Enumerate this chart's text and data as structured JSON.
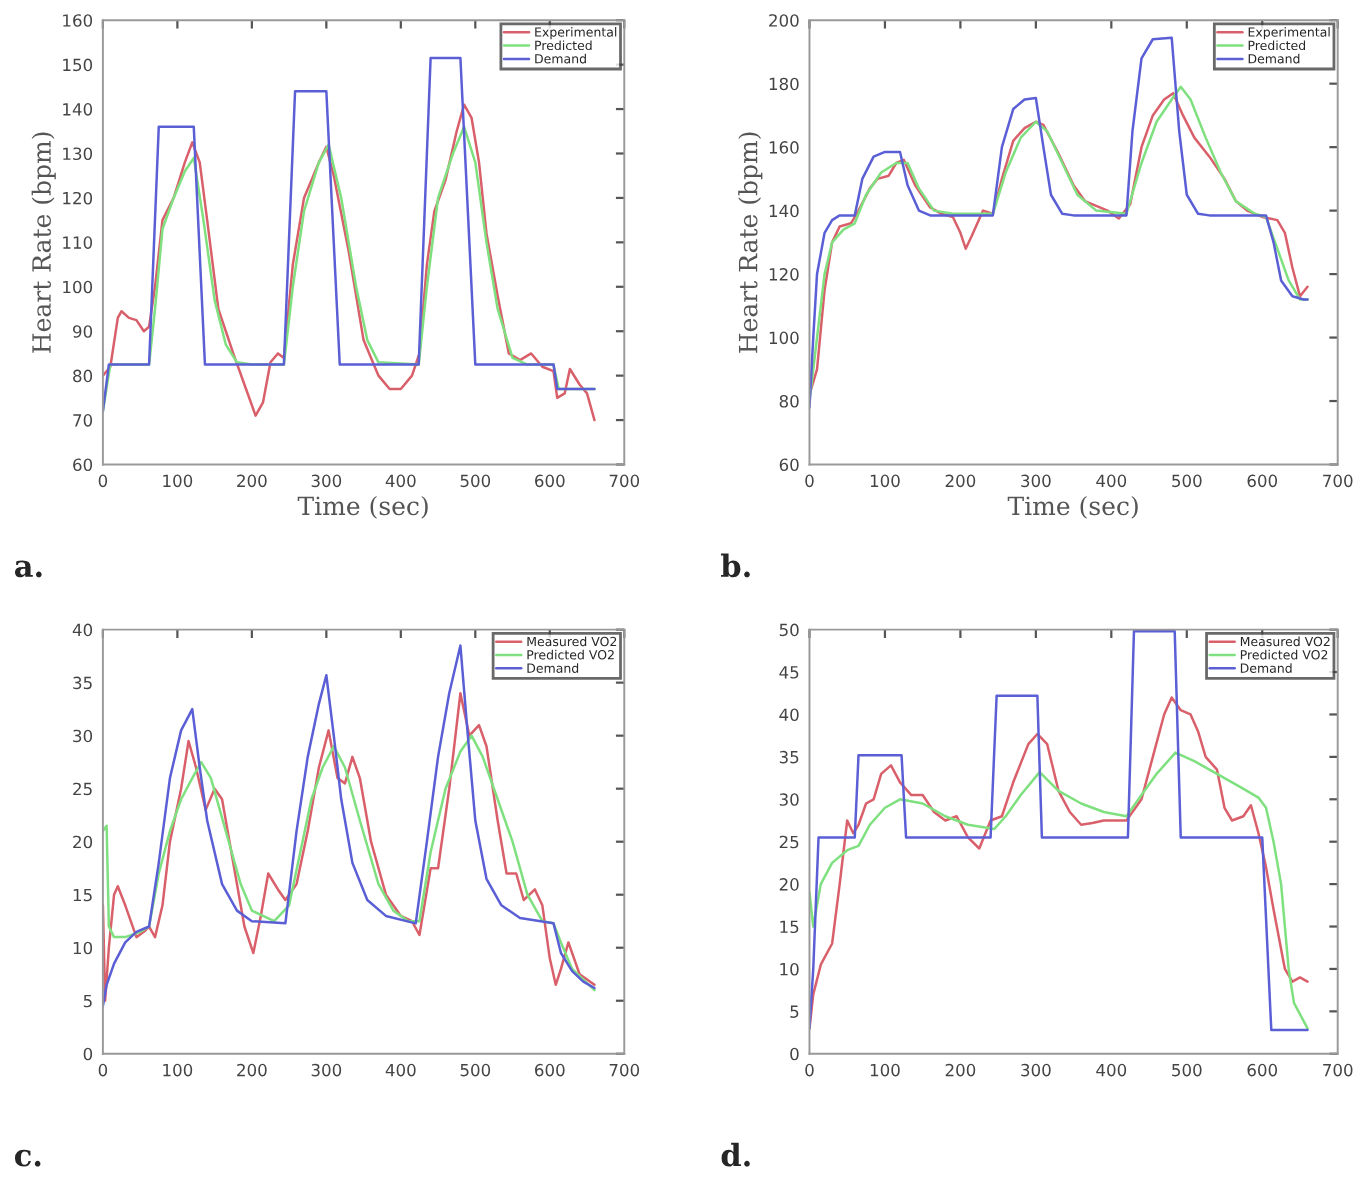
{
  "chart_data": [
    {
      "type": "line",
      "xlabel": "Time (sec)",
      "ylabel": "Heart Rate (bpm)",
      "annotations": [
        "a."
      ],
      "xlim": [
        0,
        700
      ],
      "ylim": [
        60,
        160
      ],
      "xticks": [
        0,
        100,
        200,
        300,
        400,
        500,
        600,
        700
      ],
      "yticks": [
        60,
        70,
        80,
        90,
        100,
        110,
        120,
        130,
        140,
        150,
        160
      ],
      "grid": false,
      "legend": "top right",
      "series": [
        {
          "name": "Experimental",
          "color": "#d9606a",
          "x": [
            0,
            10,
            20,
            25,
            35,
            45,
            55,
            62,
            70,
            80,
            95,
            110,
            120,
            130,
            140,
            155,
            175,
            190,
            205,
            215,
            225,
            235,
            243,
            255,
            270,
            290,
            300,
            310,
            330,
            350,
            370,
            385,
            400,
            415,
            425,
            435,
            445,
            460,
            475,
            485,
            495,
            505,
            515,
            530,
            545,
            560,
            575,
            590,
            605,
            610,
            620,
            627,
            640,
            650,
            660
          ],
          "values": [
            80,
            82,
            93,
            94.5,
            93,
            92.5,
            90,
            91,
            100,
            115,
            120,
            128,
            132.5,
            128,
            115,
            95,
            85,
            78,
            71,
            74,
            83,
            85,
            84,
            105,
            120,
            128,
            131.5,
            125,
            108,
            88,
            80,
            77,
            77,
            80,
            85,
            105,
            117,
            124,
            135,
            141,
            138,
            128,
            112,
            98,
            85,
            83.5,
            85,
            82,
            81,
            75,
            76,
            81.5,
            78,
            76,
            70
          ]
        },
        {
          "name": "Predicted",
          "color": "#7fe07f",
          "x": [
            0,
            10,
            62,
            70,
            80,
            95,
            110,
            122,
            135,
            150,
            165,
            180,
            200,
            243,
            255,
            270,
            290,
            303,
            320,
            340,
            355,
            370,
            424,
            435,
            450,
            470,
            485,
            500,
            515,
            530,
            550,
            570,
            605,
            612,
            660
          ],
          "values": [
            72,
            82.5,
            82.5,
            95,
            113,
            120,
            126,
            129,
            115,
            97,
            87,
            83,
            82.5,
            82.5,
            100,
            117,
            128,
            132,
            120,
            100,
            88,
            83,
            82.5,
            100,
            120,
            130,
            136,
            128,
            110,
            95,
            84,
            82.5,
            82.5,
            77,
            77
          ]
        },
        {
          "name": "Demand",
          "color": "#5b5fd6",
          "x": [
            0,
            8,
            62,
            75,
            122,
            137,
            243,
            258,
            300,
            318,
            424,
            440,
            480,
            500,
            605,
            610,
            660
          ],
          "values": [
            72,
            82.5,
            82.5,
            136,
            136,
            82.5,
            82.5,
            144,
            144,
            82.5,
            82.5,
            151.5,
            151.5,
            82.5,
            82.5,
            77,
            77
          ]
        }
      ]
    },
    {
      "type": "line",
      "xlabel": "Time (sec)",
      "ylabel": "Heart Rate (bpm)",
      "annotations": [
        "b."
      ],
      "xlim": [
        0,
        700
      ],
      "ylim": [
        60,
        200
      ],
      "xticks": [
        0,
        100,
        200,
        300,
        400,
        500,
        600,
        700
      ],
      "yticks": [
        60,
        80,
        100,
        120,
        140,
        160,
        180,
        200
      ],
      "grid": false,
      "legend": "top right",
      "series": [
        {
          "name": "Experimental",
          "color": "#d9606a",
          "x": [
            0,
            10,
            20,
            30,
            40,
            55,
            65,
            80,
            90,
            105,
            115,
            125,
            140,
            160,
            175,
            190,
            200,
            207,
            215,
            230,
            243,
            255,
            270,
            285,
            300,
            310,
            330,
            350,
            365,
            380,
            395,
            410,
            425,
            440,
            455,
            470,
            482,
            495,
            510,
            530,
            550,
            565,
            580,
            600,
            620,
            630,
            640,
            650,
            660
          ],
          "values": [
            82,
            90,
            115,
            130,
            135,
            136,
            140,
            147,
            150,
            151,
            155,
            156,
            148,
            141,
            139,
            138,
            133,
            128,
            132,
            140,
            139,
            150,
            162,
            166,
            168,
            167,
            158,
            148,
            143,
            141.5,
            140,
            137.5,
            142,
            160,
            170,
            175,
            177,
            170,
            163,
            157,
            150,
            143,
            140,
            138,
            137,
            133,
            122,
            113,
            116
          ]
        },
        {
          "name": "Predicted",
          "color": "#7fe07f",
          "x": [
            0,
            10,
            20,
            30,
            45,
            60,
            75,
            95,
            115,
            130,
            145,
            165,
            190,
            243,
            260,
            280,
            300,
            315,
            335,
            355,
            380,
            420,
            440,
            460,
            480,
            492,
            505,
            525,
            545,
            565,
            590,
            605,
            620,
            635,
            650,
            660
          ],
          "values": [
            80,
            100,
            120,
            130,
            134,
            136,
            145,
            152,
            155,
            155,
            147,
            140,
            139,
            139,
            152,
            163,
            168,
            165,
            155,
            145,
            140,
            139,
            155,
            168,
            175,
            179,
            175,
            163,
            152,
            143,
            139,
            138,
            128,
            118,
            112,
            112
          ]
        },
        {
          "name": "Demand",
          "color": "#5b5fd6",
          "x": [
            0,
            5,
            10,
            20,
            30,
            40,
            60,
            70,
            85,
            100,
            120,
            130,
            145,
            160,
            243,
            255,
            270,
            285,
            300,
            310,
            320,
            335,
            350,
            420,
            428,
            440,
            455,
            480,
            490,
            500,
            515,
            530,
            605,
            615,
            625,
            640,
            655,
            660
          ],
          "values": [
            78,
            100,
            120,
            133,
            137,
            138.5,
            138.5,
            150,
            157,
            158.5,
            158.5,
            148,
            140,
            138.5,
            138.5,
            160,
            172,
            175,
            175.5,
            160,
            145,
            139,
            138.5,
            138.5,
            165,
            188,
            194,
            194.5,
            165,
            145,
            139,
            138.5,
            138.5,
            130,
            118,
            113,
            112,
            112
          ]
        }
      ]
    },
    {
      "type": "line",
      "annotations": [
        "c."
      ],
      "xlim": [
        0,
        700
      ],
      "ylim": [
        0,
        40
      ],
      "xticks": [
        0,
        100,
        200,
        300,
        400,
        500,
        600,
        700
      ],
      "yticks": [
        0,
        5,
        10,
        15,
        20,
        25,
        30,
        35,
        40
      ],
      "grid": false,
      "legend": "top right",
      "series": [
        {
          "name": "Measured VO2",
          "color": "#d9606a",
          "x": [
            0,
            3,
            8,
            15,
            20,
            30,
            45,
            55,
            62,
            70,
            80,
            90,
            105,
            115,
            125,
            138,
            150,
            160,
            175,
            190,
            202,
            212,
            222,
            235,
            245,
            260,
            275,
            290,
            303,
            315,
            325,
            335,
            345,
            360,
            380,
            400,
            415,
            425,
            440,
            450,
            465,
            480,
            492,
            505,
            515,
            530,
            542,
            555,
            565,
            580,
            590,
            600,
            608,
            615,
            625,
            640,
            660
          ],
          "values": [
            14,
            5,
            10,
            15,
            15.8,
            14,
            11,
            11.5,
            12,
            11,
            14,
            20,
            25,
            29.5,
            27,
            23,
            25,
            24,
            18,
            12,
            9.5,
            13,
            17,
            15.5,
            14.5,
            16,
            21,
            27,
            30.5,
            26,
            25.5,
            28,
            26,
            20,
            15,
            13,
            12.5,
            11.2,
            17.5,
            17.5,
            25,
            34,
            30,
            31,
            29,
            22,
            17,
            17,
            14.5,
            15.5,
            14,
            9,
            6.5,
            8,
            10.5,
            7.5,
            6.5
          ]
        },
        {
          "name": "Predicted VO2",
          "color": "#7fe07f",
          "x": [
            0,
            5,
            8,
            15,
            30,
            50,
            62,
            75,
            90,
            105,
            120,
            132,
            145,
            165,
            185,
            200,
            230,
            250,
            265,
            280,
            295,
            310,
            325,
            345,
            370,
            390,
            410,
            425,
            440,
            460,
            480,
            495,
            510,
            530,
            550,
            570,
            590,
            605,
            615,
            630,
            645,
            660
          ],
          "values": [
            21,
            21.5,
            12,
            11,
            11,
            11.5,
            12,
            17,
            21,
            24,
            26,
            27.5,
            26,
            21,
            16,
            13.5,
            12.5,
            14,
            19,
            24,
            27,
            29,
            27,
            22,
            16,
            13.5,
            12.5,
            12.5,
            19,
            25,
            28.5,
            30,
            28,
            24,
            20,
            15,
            12.5,
            12.3,
            10.5,
            8,
            7,
            6
          ]
        },
        {
          "name": "Demand",
          "color": "#5b5fd6",
          "x": [
            0,
            5,
            15,
            30,
            45,
            62,
            75,
            90,
            105,
            120,
            130,
            140,
            160,
            180,
            200,
            245,
            260,
            275,
            290,
            300,
            310,
            320,
            335,
            355,
            380,
            420,
            435,
            450,
            465,
            480,
            490,
            500,
            515,
            535,
            560,
            605,
            615,
            630,
            645,
            660
          ],
          "values": [
            4.5,
            6.5,
            8.5,
            10.5,
            11.5,
            12,
            18,
            26,
            30.5,
            32.5,
            27,
            22,
            16,
            13.5,
            12.5,
            12.3,
            21,
            28,
            33,
            35.7,
            30,
            24,
            18,
            14.5,
            13,
            12.3,
            20,
            28,
            34,
            38.5,
            30,
            22,
            16.5,
            14,
            12.8,
            12.3,
            9.5,
            7.8,
            6.8,
            6.2
          ]
        }
      ]
    },
    {
      "type": "line",
      "annotations": [
        "d."
      ],
      "xlim": [
        0,
        700
      ],
      "ylim": [
        0,
        50
      ],
      "xticks": [
        0,
        100,
        200,
        300,
        400,
        500,
        600,
        700
      ],
      "yticks": [
        0,
        5,
        10,
        15,
        20,
        25,
        30,
        35,
        40,
        45,
        50
      ],
      "grid": false,
      "legend": "top right",
      "series": [
        {
          "name": "Measured VO2",
          "color": "#d9606a",
          "x": [
            0,
            5,
            15,
            30,
            40,
            50,
            58,
            65,
            75,
            85,
            95,
            108,
            120,
            135,
            150,
            165,
            180,
            195,
            210,
            225,
            240,
            255,
            270,
            290,
            302,
            315,
            330,
            345,
            360,
            375,
            390,
            405,
            420,
            440,
            455,
            470,
            480,
            492,
            505,
            515,
            525,
            540,
            550,
            560,
            575,
            585,
            595,
            605,
            615,
            630,
            640,
            650,
            660
          ],
          "values": [
            3,
            7,
            10.5,
            13,
            20,
            27.5,
            26,
            27,
            29.5,
            30,
            33,
            34,
            32,
            30.5,
            30.5,
            28.5,
            27.5,
            28,
            25.5,
            24.2,
            27.5,
            28,
            32,
            36.5,
            37.7,
            36.5,
            31,
            28.5,
            27,
            27.2,
            27.5,
            27.5,
            27.5,
            30,
            35,
            40,
            42,
            40.5,
            40,
            38,
            35,
            33.5,
            29,
            27.5,
            28,
            29.3,
            26,
            22,
            17,
            10,
            8.5,
            9,
            8.5
          ]
        },
        {
          "name": "Predicted VO2",
          "color": "#7fe07f",
          "x": [
            0,
            5,
            15,
            30,
            50,
            65,
            80,
            100,
            120,
            150,
            180,
            210,
            245,
            260,
            280,
            305,
            330,
            360,
            390,
            420,
            440,
            460,
            485,
            510,
            540,
            570,
            595,
            605,
            615,
            625,
            635,
            642,
            660
          ],
          "values": [
            19,
            15,
            20,
            22.5,
            24,
            24.5,
            27,
            29,
            30,
            29.5,
            28,
            27,
            26.5,
            28,
            30.5,
            33.2,
            31,
            29.5,
            28.5,
            28,
            30.5,
            33,
            35.5,
            34.5,
            33,
            31.5,
            30.2,
            29,
            25,
            20,
            10,
            6,
            3
          ]
        },
        {
          "name": "Demand",
          "color": "#5b5fd6",
          "x": [
            0,
            5,
            12,
            60,
            65,
            122,
            128,
            240,
            248,
            302,
            308,
            422,
            430,
            484,
            492,
            600,
            612,
            660
          ],
          "values": [
            3,
            10,
            25.5,
            25.5,
            35.2,
            35.2,
            25.5,
            25.5,
            42.2,
            42.2,
            25.5,
            25.5,
            49.8,
            49.8,
            25.5,
            25.5,
            2.8,
            2.8
          ]
        }
      ]
    }
  ]
}
